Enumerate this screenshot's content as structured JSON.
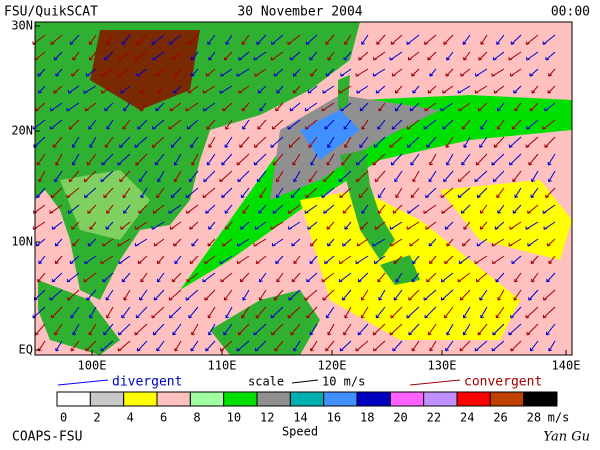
{
  "header": {
    "left": "FSU/QuikSCAT",
    "center": "30 November 2004",
    "right": "00:00"
  },
  "map": {
    "lat_labels": [
      "30N",
      "20N",
      "10N",
      "EQ"
    ],
    "lon_labels": [
      "100E",
      "110E",
      "120E",
      "130E",
      "140E"
    ]
  },
  "legend": {
    "divergent": "divergent",
    "scale": "scale",
    "scale_value": "10 m/s",
    "convergent": "convergent",
    "colorbar": {
      "colors": [
        "#ffffff",
        "#c8c8c8",
        "#ffff00",
        "#ffc0c0",
        "#a0ffa0",
        "#00e000",
        "#909090",
        "#00b0b0",
        "#4090ff",
        "#0000c0",
        "#ff60ff",
        "#c090ff",
        "#ff0000",
        "#c04000",
        "#000000"
      ],
      "ticks": [
        0,
        2,
        4,
        6,
        8,
        10,
        12,
        14,
        16,
        18,
        20,
        22,
        24,
        26,
        28
      ],
      "unit": "m/s",
      "label": "Speed"
    }
  },
  "footer": {
    "left": "COAPS-FSU",
    "right": "Yan Gu"
  }
}
